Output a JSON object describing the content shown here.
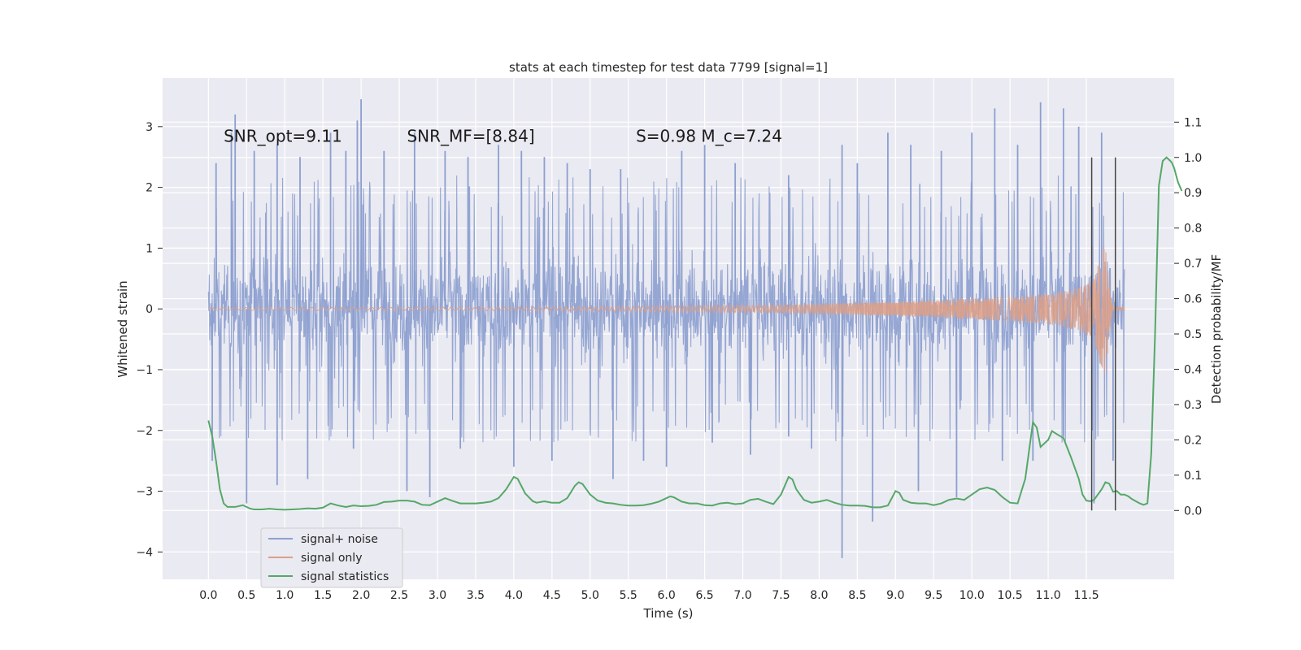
{
  "chart_data": {
    "type": "line",
    "title": "stats at each timestep for test data 7799 [signal=1]",
    "xlabel": "Time (s)",
    "ylabel_left": "Whitened strain",
    "ylabel_right": "Detection probability/MF",
    "xlim": [
      -0.6,
      12.65
    ],
    "ylim_left": [
      -4.45,
      3.8
    ],
    "ylim_right": [
      -0.195,
      1.225
    ],
    "x_ticks": [
      0.0,
      0.5,
      1.0,
      1.5,
      2.0,
      2.5,
      3.0,
      3.5,
      4.0,
      4.5,
      5.0,
      5.5,
      6.0,
      6.5,
      7.0,
      7.5,
      8.0,
      8.5,
      9.0,
      9.5,
      10.0,
      10.5,
      11.0,
      11.5
    ],
    "x_tick_labels": [
      "0.0",
      "0.5",
      "1.0",
      "1.5",
      "2.0",
      "2.5",
      "3.0",
      "3.5",
      "4.0",
      "4.5",
      "5.0",
      "5.5",
      "6.0",
      "6.5",
      "7.0",
      "7.5",
      "8.0",
      "8.5",
      "9.0",
      "9.5",
      "10.0",
      "10.5",
      "11.0",
      "11.5"
    ],
    "y_left_ticks": [
      -4,
      -3,
      -2,
      -1,
      0,
      1,
      2,
      3
    ],
    "y_left_tick_labels": [
      "−4",
      "−3",
      "−2",
      "−1",
      "0",
      "1",
      "2",
      "3"
    ],
    "y_right_ticks": [
      0.0,
      0.1,
      0.2,
      0.3,
      0.4,
      0.5,
      0.6,
      0.7,
      0.8,
      0.9,
      1.0,
      1.1
    ],
    "y_right_tick_labels": [
      "0.0",
      "0.1",
      "0.2",
      "0.3",
      "0.4",
      "0.5",
      "0.6",
      "0.7",
      "0.8",
      "0.9",
      "1.0",
      "1.1"
    ],
    "grid": true,
    "legend_placement": "lower-left",
    "annotations": [
      {
        "label": "SNR_opt=9.11",
        "x": 0.2,
        "y": 2.75
      },
      {
        "label": "SNR_MF=[8.84]",
        "x": 2.6,
        "y": 2.75
      },
      {
        "label": "S=0.98   M_c=7.24",
        "x": 5.6,
        "y": 2.75
      }
    ],
    "vlines": [
      11.57,
      11.88
    ],
    "series": [
      {
        "name": "signal+ noise",
        "color": "#8c9fcf",
        "axis": "left",
        "kind": "noise-band",
        "x_range": [
          0.0,
          12.0
        ],
        "core_sigma": 0.75,
        "spikes_up": [
          [
            0.1,
            2.4
          ],
          [
            0.3,
            2.9
          ],
          [
            0.35,
            3.2
          ],
          [
            0.6,
            2.6
          ],
          [
            0.9,
            2.7
          ],
          [
            1.2,
            2.5
          ],
          [
            1.6,
            2.9
          ],
          [
            1.8,
            2.6
          ],
          [
            1.95,
            3.1
          ],
          [
            2.0,
            3.45
          ],
          [
            2.3,
            2.6
          ],
          [
            2.7,
            2.9
          ],
          [
            3.1,
            2.6
          ],
          [
            3.4,
            2.5
          ],
          [
            3.8,
            2.7
          ],
          [
            4.1,
            2.6
          ],
          [
            4.4,
            2.5
          ],
          [
            4.7,
            2.4
          ],
          [
            5.0,
            2.3
          ],
          [
            5.4,
            2.3
          ],
          [
            6.2,
            2.6
          ],
          [
            6.5,
            2.7
          ],
          [
            6.9,
            2.4
          ],
          [
            7.6,
            2.2
          ],
          [
            8.3,
            2.7
          ],
          [
            8.5,
            2.4
          ],
          [
            8.9,
            2.9
          ],
          [
            9.2,
            2.7
          ],
          [
            9.6,
            2.6
          ],
          [
            10.0,
            2.9
          ],
          [
            10.3,
            3.3
          ],
          [
            10.6,
            2.7
          ],
          [
            10.9,
            3.4
          ],
          [
            11.2,
            3.3
          ],
          [
            11.4,
            3.0
          ],
          [
            11.7,
            2.9
          ]
        ],
        "spikes_down": [
          [
            0.05,
            -2.5
          ],
          [
            0.5,
            -3.2
          ],
          [
            0.9,
            -2.9
          ],
          [
            1.3,
            -2.8
          ],
          [
            1.9,
            -2.3
          ],
          [
            2.6,
            -3.0
          ],
          [
            2.9,
            -3.1
          ],
          [
            3.3,
            -2.3
          ],
          [
            4.0,
            -2.6
          ],
          [
            4.5,
            -2.5
          ],
          [
            5.3,
            -2.8
          ],
          [
            5.7,
            -2.5
          ],
          [
            6.0,
            -2.6
          ],
          [
            6.6,
            -2.2
          ],
          [
            7.1,
            -2.4
          ],
          [
            7.6,
            -2.1
          ],
          [
            7.9,
            -2.3
          ],
          [
            8.3,
            -4.1
          ],
          [
            8.7,
            -3.5
          ],
          [
            9.3,
            -3.0
          ],
          [
            9.8,
            -3.1
          ],
          [
            10.4,
            -2.5
          ],
          [
            10.8,
            -2.5
          ],
          [
            11.2,
            -2.1
          ],
          [
            11.6,
            -3.2
          ],
          [
            11.85,
            -2.5
          ]
        ]
      },
      {
        "name": "signal only",
        "color": "#dd9f86",
        "axis": "left",
        "kind": "chirp",
        "x_range": [
          0.0,
          12.0
        ],
        "envelope": [
          [
            0.0,
            0.02
          ],
          [
            4.0,
            0.03
          ],
          [
            6.0,
            0.05
          ],
          [
            7.5,
            0.06
          ],
          [
            8.5,
            0.1
          ],
          [
            9.5,
            0.14
          ],
          [
            10.5,
            0.2
          ],
          [
            11.0,
            0.25
          ],
          [
            11.4,
            0.35
          ],
          [
            11.6,
            0.5
          ],
          [
            11.75,
            1.15
          ],
          [
            11.8,
            0.4
          ],
          [
            11.85,
            0.02
          ],
          [
            12.0,
            0.02
          ]
        ]
      },
      {
        "name": "signal statistics",
        "color": "#55a868",
        "axis": "right",
        "kind": "line",
        "points": [
          [
            0.0,
            0.255
          ],
          [
            0.05,
            0.21
          ],
          [
            0.1,
            0.14
          ],
          [
            0.15,
            0.06
          ],
          [
            0.2,
            0.02
          ],
          [
            0.25,
            0.01
          ],
          [
            0.35,
            0.01
          ],
          [
            0.45,
            0.015
          ],
          [
            0.55,
            0.005
          ],
          [
            0.6,
            0.003
          ],
          [
            0.7,
            0.003
          ],
          [
            0.8,
            0.005
          ],
          [
            0.9,
            0.003
          ],
          [
            1.0,
            0.002
          ],
          [
            1.1,
            0.003
          ],
          [
            1.2,
            0.004
          ],
          [
            1.3,
            0.006
          ],
          [
            1.4,
            0.005
          ],
          [
            1.5,
            0.008
          ],
          [
            1.6,
            0.02
          ],
          [
            1.7,
            0.014
          ],
          [
            1.8,
            0.01
          ],
          [
            1.9,
            0.014
          ],
          [
            2.0,
            0.012
          ],
          [
            2.1,
            0.013
          ],
          [
            2.2,
            0.016
          ],
          [
            2.3,
            0.024
          ],
          [
            2.4,
            0.025
          ],
          [
            2.5,
            0.028
          ],
          [
            2.6,
            0.028
          ],
          [
            2.7,
            0.025
          ],
          [
            2.8,
            0.016
          ],
          [
            2.9,
            0.015
          ],
          [
            3.0,
            0.025
          ],
          [
            3.1,
            0.035
          ],
          [
            3.2,
            0.027
          ],
          [
            3.3,
            0.02
          ],
          [
            3.4,
            0.02
          ],
          [
            3.5,
            0.02
          ],
          [
            3.6,
            0.022
          ],
          [
            3.7,
            0.025
          ],
          [
            3.8,
            0.035
          ],
          [
            3.9,
            0.06
          ],
          [
            4.0,
            0.095
          ],
          [
            4.05,
            0.09
          ],
          [
            4.15,
            0.048
          ],
          [
            4.25,
            0.026
          ],
          [
            4.3,
            0.022
          ],
          [
            4.4,
            0.026
          ],
          [
            4.5,
            0.022
          ],
          [
            4.6,
            0.022
          ],
          [
            4.7,
            0.035
          ],
          [
            4.8,
            0.07
          ],
          [
            4.85,
            0.08
          ],
          [
            4.9,
            0.075
          ],
          [
            5.0,
            0.045
          ],
          [
            5.1,
            0.028
          ],
          [
            5.2,
            0.022
          ],
          [
            5.3,
            0.02
          ],
          [
            5.4,
            0.016
          ],
          [
            5.5,
            0.014
          ],
          [
            5.6,
            0.014
          ],
          [
            5.7,
            0.015
          ],
          [
            5.8,
            0.019
          ],
          [
            5.9,
            0.025
          ],
          [
            6.0,
            0.035
          ],
          [
            6.05,
            0.04
          ],
          [
            6.1,
            0.037
          ],
          [
            6.2,
            0.025
          ],
          [
            6.3,
            0.02
          ],
          [
            6.4,
            0.02
          ],
          [
            6.5,
            0.015
          ],
          [
            6.6,
            0.014
          ],
          [
            6.7,
            0.02
          ],
          [
            6.8,
            0.022
          ],
          [
            6.9,
            0.018
          ],
          [
            7.0,
            0.02
          ],
          [
            7.1,
            0.03
          ],
          [
            7.2,
            0.033
          ],
          [
            7.3,
            0.025
          ],
          [
            7.4,
            0.018
          ],
          [
            7.5,
            0.045
          ],
          [
            7.6,
            0.095
          ],
          [
            7.65,
            0.088
          ],
          [
            7.7,
            0.06
          ],
          [
            7.8,
            0.03
          ],
          [
            7.9,
            0.022
          ],
          [
            8.0,
            0.025
          ],
          [
            8.1,
            0.03
          ],
          [
            8.2,
            0.022
          ],
          [
            8.3,
            0.016
          ],
          [
            8.4,
            0.014
          ],
          [
            8.5,
            0.014
          ],
          [
            8.6,
            0.013
          ],
          [
            8.7,
            0.009
          ],
          [
            8.8,
            0.009
          ],
          [
            8.9,
            0.014
          ],
          [
            9.0,
            0.055
          ],
          [
            9.05,
            0.05
          ],
          [
            9.1,
            0.03
          ],
          [
            9.2,
            0.022
          ],
          [
            9.3,
            0.02
          ],
          [
            9.4,
            0.02
          ],
          [
            9.5,
            0.015
          ],
          [
            9.6,
            0.02
          ],
          [
            9.7,
            0.03
          ],
          [
            9.8,
            0.034
          ],
          [
            9.9,
            0.03
          ],
          [
            10.0,
            0.045
          ],
          [
            10.1,
            0.06
          ],
          [
            10.2,
            0.065
          ],
          [
            10.3,
            0.058
          ],
          [
            10.4,
            0.038
          ],
          [
            10.5,
            0.022
          ],
          [
            10.6,
            0.02
          ],
          [
            10.7,
            0.09
          ],
          [
            10.8,
            0.25
          ],
          [
            10.85,
            0.235
          ],
          [
            10.9,
            0.18
          ],
          [
            11.0,
            0.2
          ],
          [
            11.05,
            0.225
          ],
          [
            11.1,
            0.218
          ],
          [
            11.2,
            0.205
          ],
          [
            11.3,
            0.15
          ],
          [
            11.4,
            0.09
          ],
          [
            11.45,
            0.045
          ],
          [
            11.5,
            0.028
          ],
          [
            11.55,
            0.026
          ],
          [
            11.6,
            0.03
          ],
          [
            11.7,
            0.06
          ],
          [
            11.75,
            0.08
          ],
          [
            11.8,
            0.076
          ],
          [
            11.85,
            0.053
          ],
          [
            11.9,
            0.055
          ],
          [
            11.95,
            0.045
          ],
          [
            12.0,
            0.045
          ],
          [
            12.05,
            0.04
          ],
          [
            12.1,
            0.032
          ],
          [
            12.2,
            0.02
          ],
          [
            12.25,
            0.016
          ],
          [
            12.3,
            0.02
          ],
          [
            12.35,
            0.16
          ],
          [
            12.4,
            0.5
          ],
          [
            12.45,
            0.92
          ],
          [
            12.5,
            0.99
          ],
          [
            12.55,
            1.0
          ],
          [
            12.6,
            0.99
          ],
          [
            12.62,
            0.985
          ],
          [
            12.65,
            0.97
          ],
          [
            12.7,
            0.93
          ],
          [
            12.75,
            0.905
          ]
        ]
      }
    ]
  }
}
